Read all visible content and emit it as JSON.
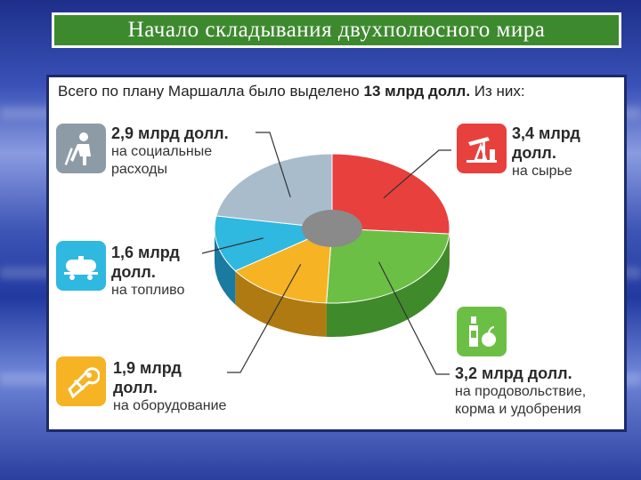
{
  "slide": {
    "title": "Начало складывания двухполюсного мира"
  },
  "chart_data": {
    "type": "pie",
    "title": "Всего по плану Маршалла было выделено 13 млрд долл. Из них:",
    "title_plain": "Всего по плану Маршалла было выделено ",
    "title_bold": "13 млрд долл.",
    "title_tail": " Из них:",
    "unit": "млрд долл.",
    "slices": [
      {
        "label": "на сырье",
        "value": 3.4,
        "color": "#e8403c",
        "side": "#a82a24",
        "icon": "oil-pump-icon",
        "amount_text": "3,4 млрд",
        "amount_text2": "долл."
      },
      {
        "label": "на продовольствие, корма и удобрения",
        "value": 3.2,
        "color": "#6cbf45",
        "side": "#3f8a2a",
        "icon": "bottle-apple-icon",
        "amount_text": "3,2 млрд долл.",
        "desc_lines": [
          "на продовольствие,",
          "корма и удобрения"
        ]
      },
      {
        "label": "на оборудование",
        "value": 1.9,
        "color": "#f6b324",
        "side": "#b07a12",
        "icon": "tools-icon",
        "amount_text": "1,9 млрд",
        "amount_text2": "долл."
      },
      {
        "label": "на топливо",
        "value": 1.6,
        "color": "#2fb8e0",
        "side": "#1a7aa0",
        "icon": "tanker-wagon-icon",
        "amount_text": "1,6 млрд",
        "amount_text2": "долл."
      },
      {
        "label": "на социальные расходы",
        "value": 2.9,
        "color": "#a8bccb",
        "side": "#6f8594",
        "icon": "worker-icon",
        "amount_text": "2,9 млрд долл.",
        "desc_lines": [
          "на социальные",
          "расходы"
        ]
      }
    ]
  }
}
